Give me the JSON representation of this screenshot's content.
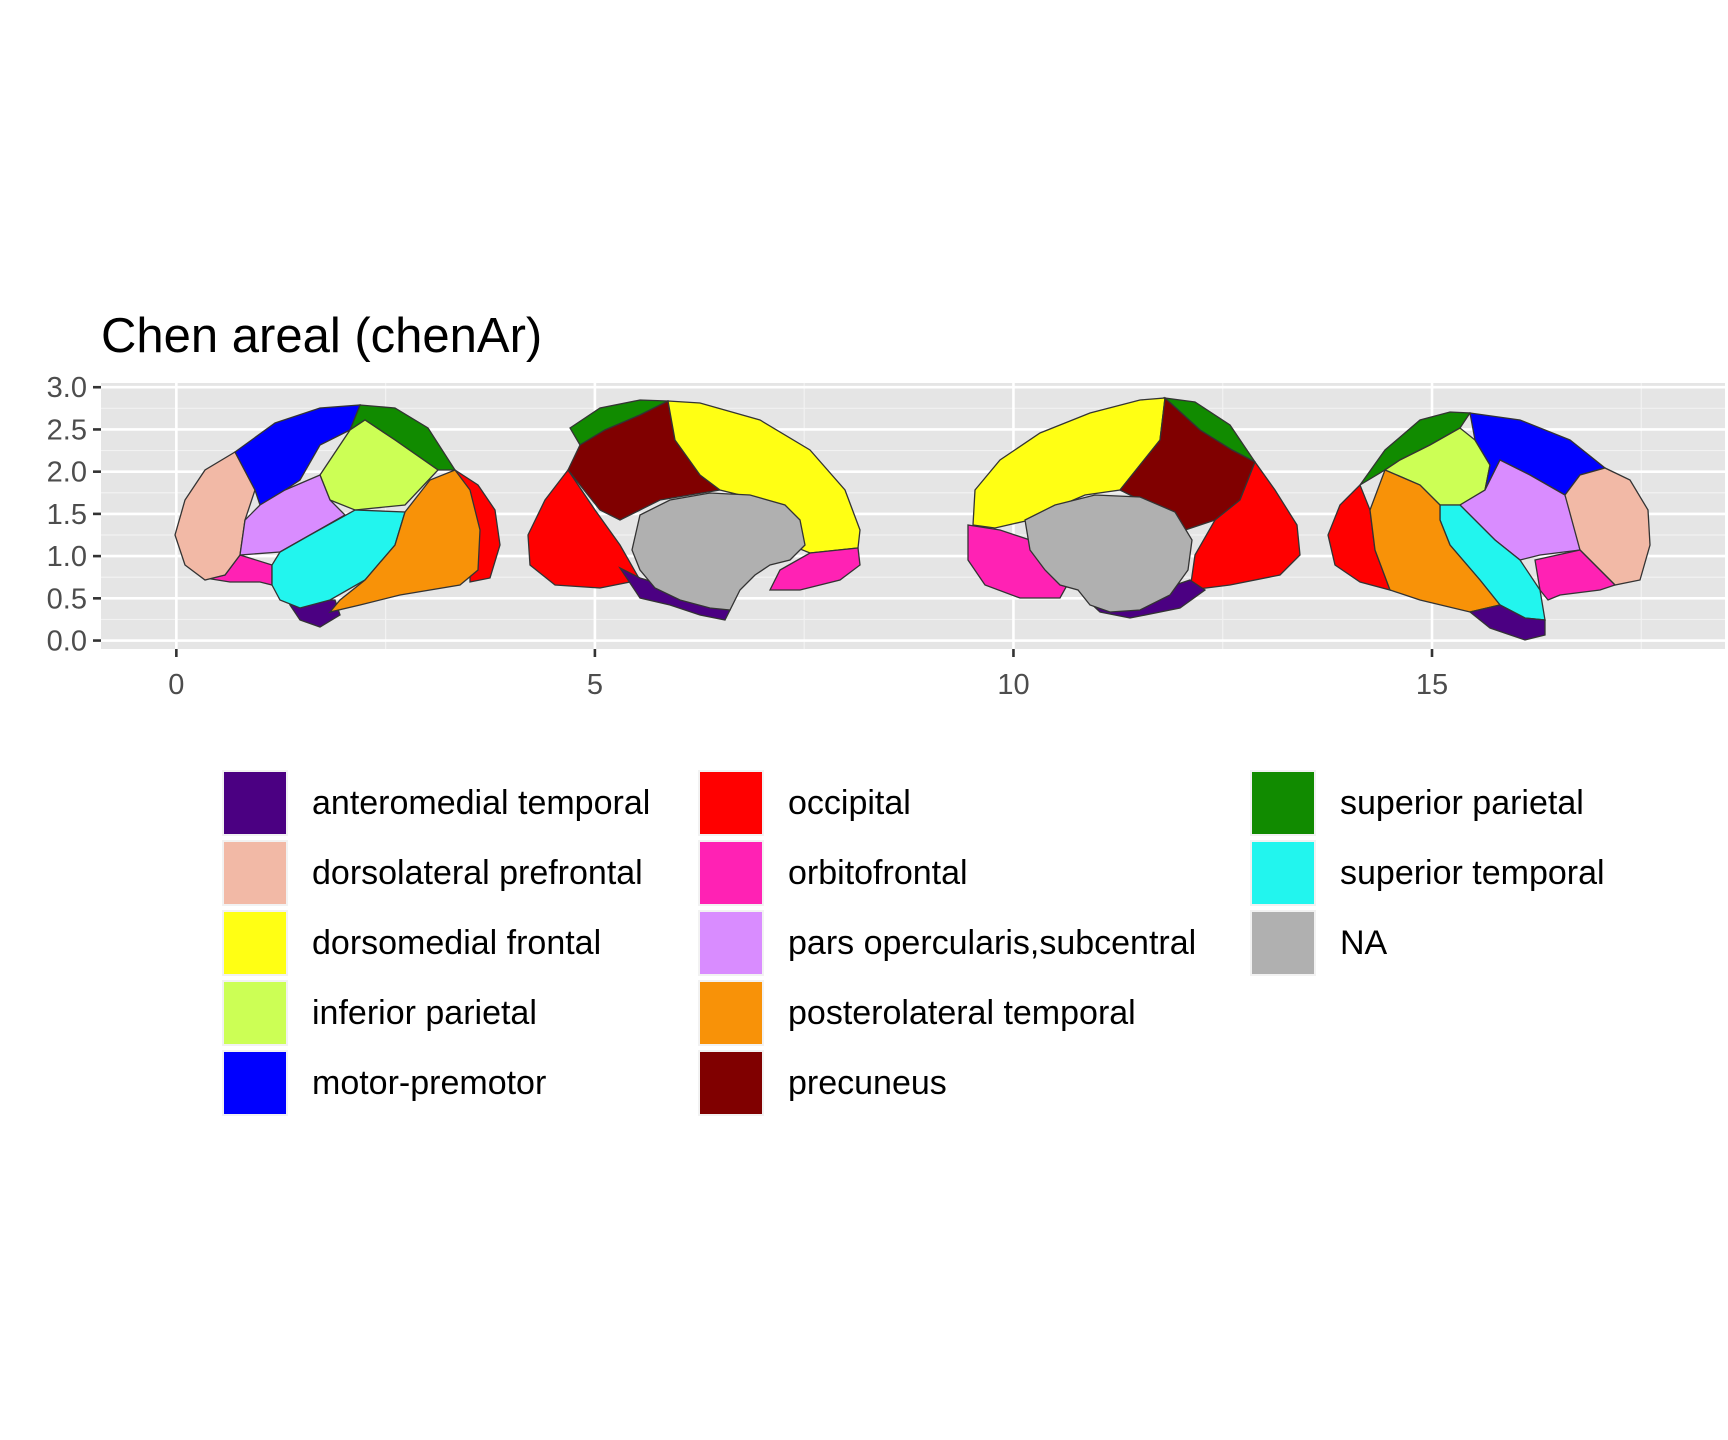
{
  "chart_data": {
    "type": "brain-atlas-map",
    "title": "Chen areal (chenAr)",
    "xlabel": "",
    "ylabel": "",
    "xlim": [
      -0.9,
      18.5
    ],
    "ylim": [
      -0.1,
      3.05
    ],
    "x_ticks": [
      0,
      5,
      10,
      15
    ],
    "y_ticks": [
      0.0,
      0.5,
      1.0,
      1.5,
      2.0,
      2.5,
      3.0
    ],
    "y_tick_labels": [
      "0.0",
      "0.5",
      "1.0",
      "1.5",
      "2.0",
      "2.5",
      "3.0"
    ],
    "grid": true,
    "legend_position": "bottom",
    "views": [
      "left lateral",
      "left medial",
      "right medial",
      "right lateral"
    ],
    "legend": [
      {
        "label": "anteromedial temporal",
        "color": "#4b0082"
      },
      {
        "label": "dorsolateral prefrontal",
        "color": "#f2b9a6"
      },
      {
        "label": "dorsomedial frontal",
        "color": "#ffff14"
      },
      {
        "label": "inferior parietal",
        "color": "#ccff55"
      },
      {
        "label": "motor-premotor",
        "color": "#0000ff"
      },
      {
        "label": "occipital",
        "color": "#ff0000"
      },
      {
        "label": "orbitofrontal",
        "color": "#ff22b4"
      },
      {
        "label": "pars opercularis,subcentral",
        "color": "#d98cff"
      },
      {
        "label": "posterolateral temporal",
        "color": "#f89208"
      },
      {
        "label": "precuneus",
        "color": "#800000"
      },
      {
        "label": "superior parietal",
        "color": "#118b00"
      },
      {
        "label": "superior temporal",
        "color": "#22f5ee"
      },
      {
        "label": "NA",
        "color": "#b0b0b0"
      }
    ]
  }
}
